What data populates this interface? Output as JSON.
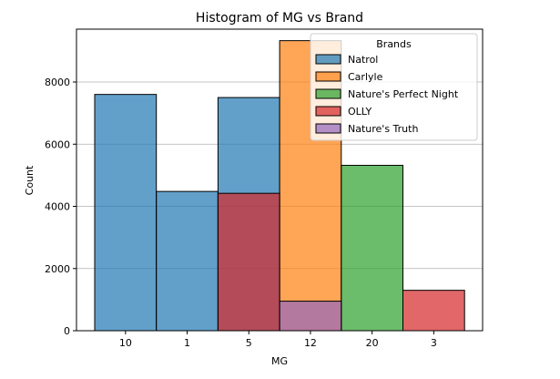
{
  "chart_data": {
    "type": "bar",
    "title": "Histogram of MG vs Brand",
    "xlabel": "MG",
    "ylabel": "Count",
    "categories": [
      "10",
      "1",
      "5",
      "12",
      "20",
      "3"
    ],
    "ylim": [
      0,
      9700
    ],
    "yticks": [
      0,
      2000,
      4000,
      6000,
      8000
    ],
    "grid": "horizontal",
    "legend": {
      "title": "Brands",
      "placement": "top-right"
    },
    "series": [
      {
        "name": "Natrol",
        "color": "#1f77b4",
        "values": [
          7600,
          4480,
          7500,
          0,
          0,
          0
        ]
      },
      {
        "name": "Carlyle",
        "color": "#ff7f0e",
        "values": [
          0,
          0,
          0,
          9330,
          0,
          0
        ]
      },
      {
        "name": "Nature's Perfect Night",
        "color": "#2ca02c",
        "values": [
          0,
          0,
          0,
          0,
          5320,
          0
        ]
      },
      {
        "name": "OLLY",
        "color": "#d62728",
        "values": [
          0,
          0,
          4420,
          0,
          0,
          1300
        ]
      },
      {
        "name": "Nature's Truth",
        "color": "#9467bd",
        "values": [
          0,
          0,
          0,
          950,
          0,
          0
        ]
      }
    ]
  }
}
